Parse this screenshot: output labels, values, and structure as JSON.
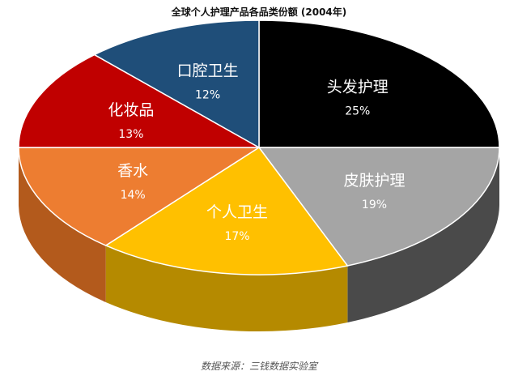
{
  "chart_data": {
    "type": "pie",
    "title": "全球个人护理产品各品类份额 (2004年)",
    "source": "数据来源：三钱数据实验室",
    "slices": [
      {
        "label": "头发护理",
        "value": 25,
        "value_label": "25%",
        "color": "#000000",
        "side_color": "#111111"
      },
      {
        "label": "皮肤护理",
        "value": 19,
        "value_label": "19%",
        "color": "#a5a5a5",
        "side_color": "#4a4a4a"
      },
      {
        "label": "个人卫生",
        "value": 17,
        "value_label": "17%",
        "color": "#ffc000",
        "side_color": "#b58a00"
      },
      {
        "label": "香水",
        "value": 14,
        "value_label": "14%",
        "color": "#ed7d31",
        "side_color": "#b35a1c"
      },
      {
        "label": "化妆品",
        "value": 13,
        "value_label": "13%",
        "color": "#c00000",
        "side_color": "#7a0000"
      },
      {
        "label": "口腔卫生",
        "value": 12,
        "value_label": "12%",
        "color": "#1f4e79",
        "side_color": "#12304a"
      }
    ]
  }
}
